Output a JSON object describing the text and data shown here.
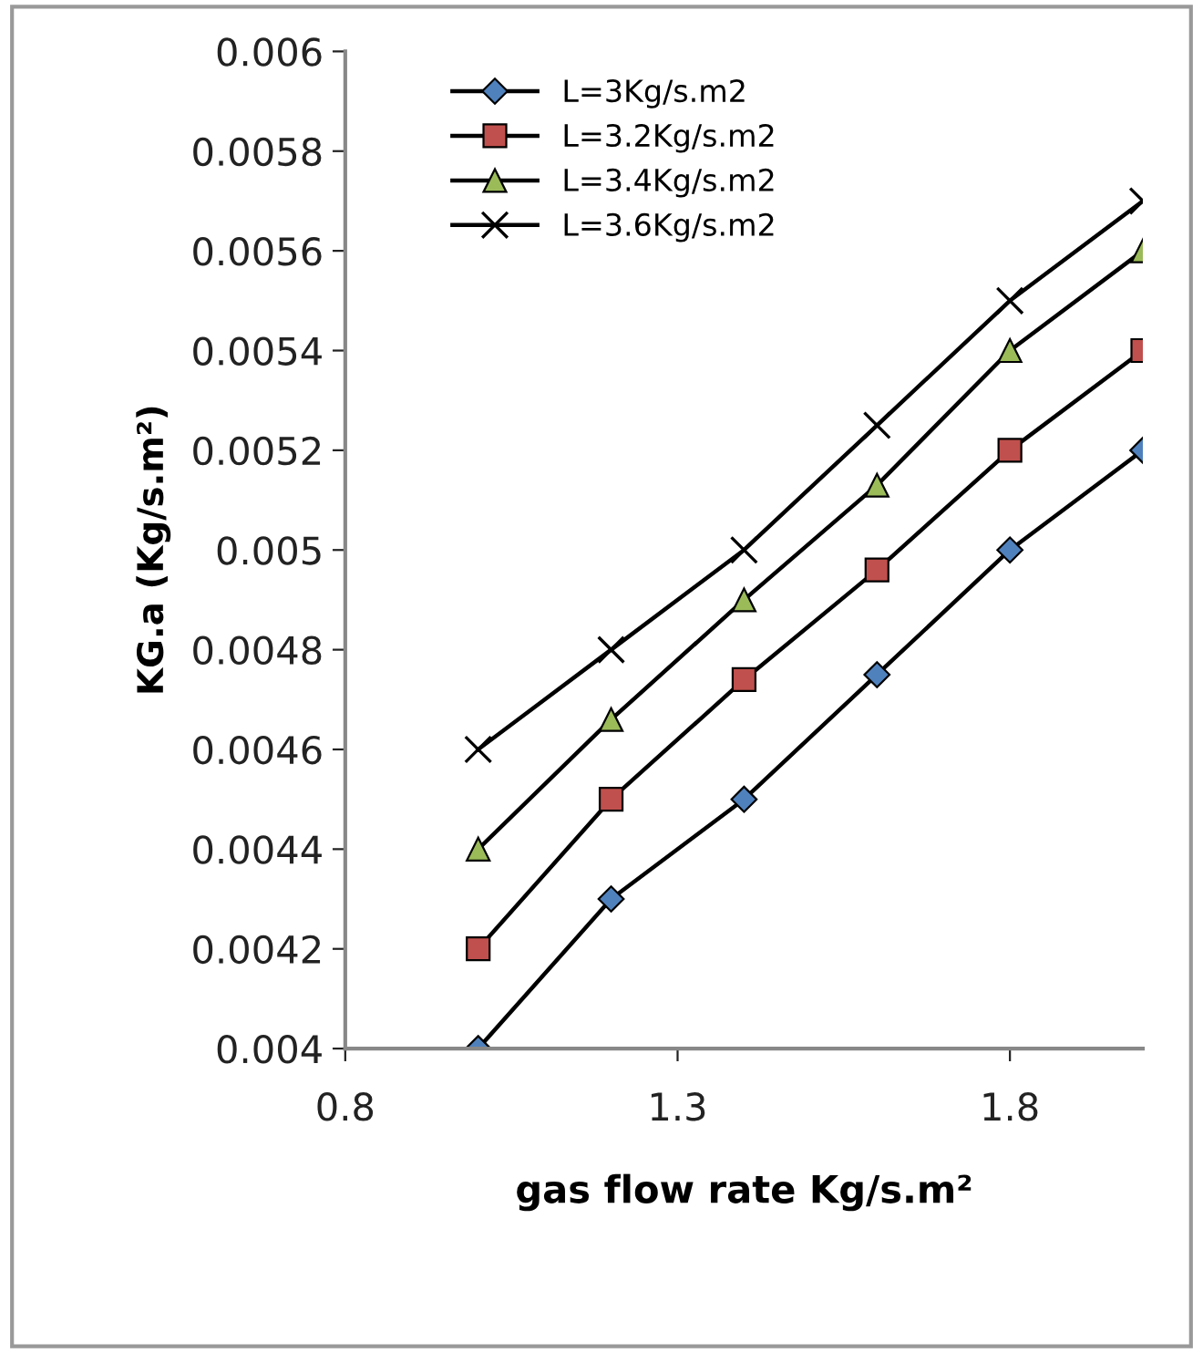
{
  "chart_data": {
    "type": "line",
    "xlabel": "gas flow rate Kg/s.m²",
    "ylabel": "KG.a (Kg/s.m²)",
    "x": [
      1.0,
      1.2,
      1.4,
      1.6,
      1.8,
      2.0
    ],
    "xlim": [
      0.8,
      2.0
    ],
    "xticks": [
      0.8,
      1.3,
      1.8
    ],
    "ylim": [
      0.004,
      0.006
    ],
    "yticks": [
      0.004,
      0.0042,
      0.0044,
      0.0046,
      0.0048,
      0.005,
      0.0052,
      0.0054,
      0.0056,
      0.0058,
      0.006
    ],
    "grid": false,
    "legend": "top left",
    "line_style": "solid",
    "series": [
      {
        "name": "L=3Kg/s.m2",
        "color": "#4f81bd",
        "marker": "diamond",
        "values": [
          0.004,
          0.0043,
          0.0045,
          0.00475,
          0.005,
          0.0052
        ]
      },
      {
        "name": "L=3.2Kg/s.m2",
        "color": "#c0504d",
        "marker": "square",
        "values": [
          0.0042,
          0.0045,
          0.00474,
          0.00496,
          0.0052,
          0.0054
        ]
      },
      {
        "name": "L=3.4Kg/s.m2",
        "color": "#9bbb59",
        "marker": "triangle",
        "values": [
          0.0044,
          0.00466,
          0.0049,
          0.00513,
          0.0054,
          0.0056
        ]
      },
      {
        "name": "L=3.6Kg/s.m2",
        "color": "#000000",
        "marker": "cross",
        "values": [
          0.0046,
          0.0048,
          0.005,
          0.00525,
          0.0055,
          0.0057
        ]
      }
    ]
  }
}
